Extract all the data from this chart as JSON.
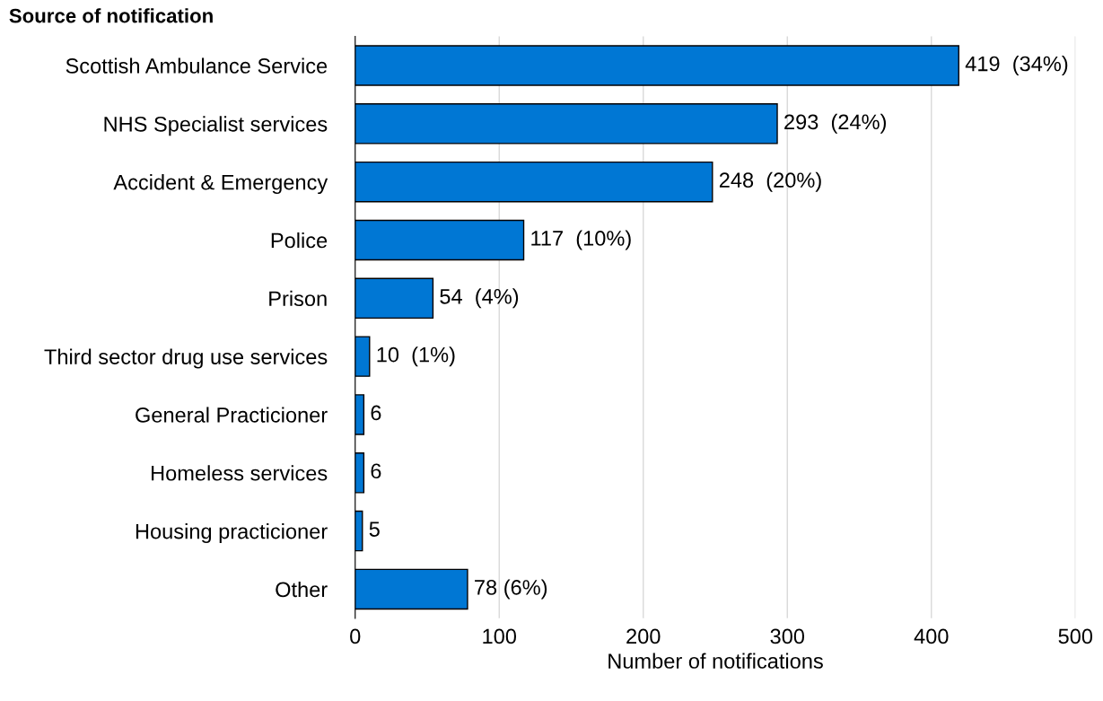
{
  "chart_data": {
    "type": "bar",
    "orientation": "horizontal",
    "title": "Source of notification",
    "xlabel": "Number of notifications",
    "categories": [
      "Scottish Ambulance Service",
      "NHS Specialist services",
      "Accident & Emergency",
      "Police",
      "Prison",
      "Third sector drug use services",
      "General Practicioner",
      "Homeless services",
      "Housing practicioner",
      "Other"
    ],
    "values": [
      419,
      293,
      248,
      117,
      54,
      10,
      6,
      6,
      5,
      78
    ],
    "value_labels": [
      "419  (34%)",
      "293  (24%)",
      "248  (20%)",
      "117  (10%)",
      "54  (4%)",
      "10  (1%)",
      "6",
      "6",
      "5",
      "78 (6%)"
    ],
    "color": "#0077d4",
    "xlim": [
      0,
      500
    ],
    "xticks": [
      0,
      100,
      200,
      300,
      400,
      500
    ],
    "grid": "x"
  }
}
